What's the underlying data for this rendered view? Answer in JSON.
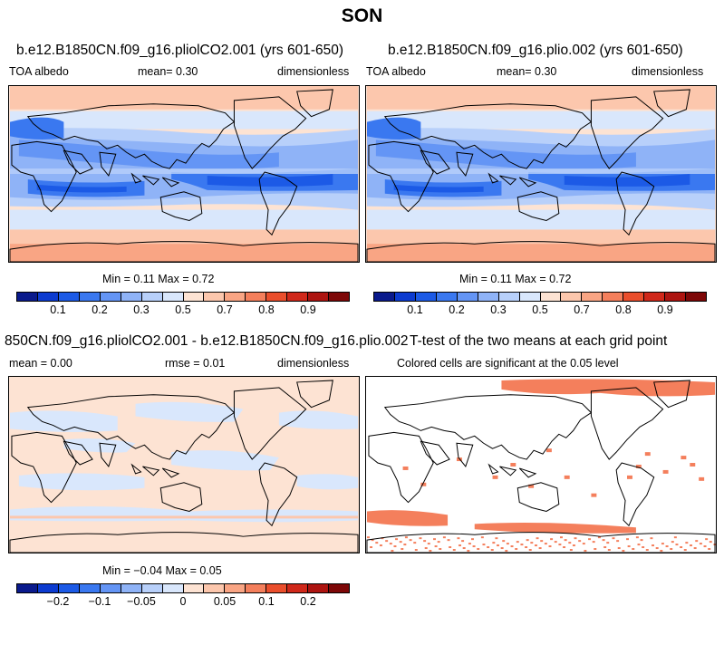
{
  "title": "SON",
  "panels": {
    "p1": {
      "title": "b.e12.B1850CN.f09_g16.pliolCO2.001 (yrs 601-650)",
      "left": "TOA albedo",
      "center": "mean=    0.30",
      "right": "dimensionless",
      "minmax": "Min =    0.11 Max =    0.72"
    },
    "p2": {
      "title": "b.e12.B1850CN.f09_g16.plio.002 (yrs 601-650)",
      "left": "TOA albedo",
      "center": "mean=    0.30",
      "right": "dimensionless",
      "minmax": "Min =    0.11 Max =    0.72"
    },
    "p3": {
      "title": "850CN.f09_g16.pliolCO2.001 - b.e12.B1850CN.f09_g16.plio.002",
      "left": "mean =    0.00",
      "center": "rmse =    0.01",
      "right": "dimensionless",
      "minmax": "Min =  −0.04 Max =    0.05"
    },
    "p4": {
      "title": "T-test of the two means at each grid point",
      "subtitle": "Colored cells are significant at the 0.05 level"
    }
  },
  "chart_data": [
    {
      "type": "heatmap",
      "title": "b.e12.B1850CN.f09_g16.pliolCO2.001 (yrs 601-650)",
      "variable": "TOA albedo",
      "units": "dimensionless",
      "mean": 0.3,
      "min": 0.11,
      "max": 0.72,
      "colorbar_labels": [
        "0.1",
        "0.2",
        "0.3",
        "0.5",
        "0.7",
        "0.8",
        "0.9"
      ],
      "colors": [
        "#0a1a8c",
        "#0c3bd0",
        "#1c5ae6",
        "#3a78f0",
        "#6495f5",
        "#8fb3f7",
        "#b8d0fa",
        "#d9e7fc",
        "#fde3d3",
        "#fcc7ad",
        "#f9a584",
        "#f47f5c",
        "#ea4e2c",
        "#d0281a",
        "#ad1410",
        "#7d0707"
      ]
    },
    {
      "type": "heatmap",
      "title": "b.e12.B1850CN.f09_g16.plio.002 (yrs 601-650)",
      "variable": "TOA albedo",
      "units": "dimensionless",
      "mean": 0.3,
      "min": 0.11,
      "max": 0.72,
      "colorbar_labels": [
        "0.1",
        "0.2",
        "0.3",
        "0.5",
        "0.7",
        "0.8",
        "0.9"
      ]
    },
    {
      "type": "heatmap",
      "title": "850CN.f09_g16.pliolCO2.001 - b.e12.B1850CN.f09_g16.plio.002",
      "units": "dimensionless",
      "mean": 0.0,
      "rmse": 0.01,
      "min": -0.04,
      "max": 0.05,
      "colorbar_labels": [
        "−0.2",
        "−0.1",
        "−0.05",
        "0",
        "0.05",
        "0.1",
        "0.2"
      ]
    },
    {
      "type": "heatmap",
      "title": "T-test of the two means at each grid point",
      "subtitle": "Colored cells are significant at the 0.05 level",
      "significance_level": 0.05
    }
  ]
}
